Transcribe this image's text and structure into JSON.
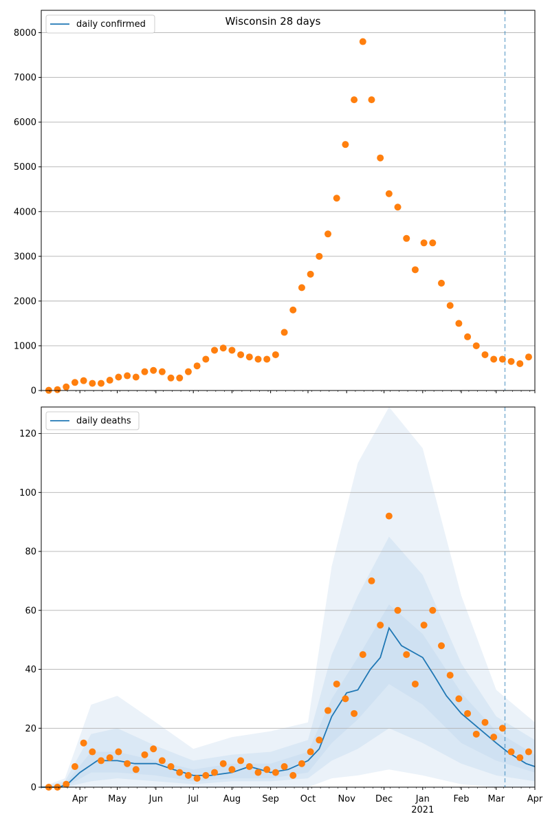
{
  "colors": {
    "line": "#1f77b4",
    "points": "#ff7f0e",
    "band": "#c6dbef",
    "grid": "#b0b0b0",
    "vline": "#1f77b4"
  },
  "chart_data": [
    {
      "type": "scatter",
      "title": "Wisconsin 28 days",
      "legend": [
        "daily confirmed"
      ],
      "legend_position": "top-left",
      "grid": "horizontal",
      "ylim": [
        0,
        8500
      ],
      "yticks": [
        0,
        1000,
        2000,
        3000,
        4000,
        5000,
        6000,
        7000,
        8000
      ],
      "x_start": "2020-03-01",
      "x_end": "2021-04-01",
      "forecast_start": "2021-03-08",
      "points_weekly": [
        [
          "2020-03-07",
          5
        ],
        [
          "2020-03-14",
          20
        ],
        [
          "2020-03-21",
          80
        ],
        [
          "2020-03-28",
          180
        ],
        [
          "2020-04-04",
          220
        ],
        [
          "2020-04-11",
          160
        ],
        [
          "2020-04-18",
          160
        ],
        [
          "2020-04-25",
          230
        ],
        [
          "2020-05-02",
          300
        ],
        [
          "2020-05-09",
          330
        ],
        [
          "2020-05-16",
          300
        ],
        [
          "2020-05-23",
          420
        ],
        [
          "2020-05-30",
          450
        ],
        [
          "2020-06-06",
          420
        ],
        [
          "2020-06-13",
          280
        ],
        [
          "2020-06-20",
          280
        ],
        [
          "2020-06-27",
          420
        ],
        [
          "2020-07-04",
          550
        ],
        [
          "2020-07-11",
          700
        ],
        [
          "2020-07-18",
          900
        ],
        [
          "2020-07-25",
          950
        ],
        [
          "2020-08-01",
          900
        ],
        [
          "2020-08-08",
          800
        ],
        [
          "2020-08-15",
          750
        ],
        [
          "2020-08-22",
          700
        ],
        [
          "2020-08-29",
          700
        ],
        [
          "2020-09-05",
          800
        ],
        [
          "2020-09-12",
          1300
        ],
        [
          "2020-09-19",
          1800
        ],
        [
          "2020-09-26",
          2300
        ],
        [
          "2020-10-03",
          2600
        ],
        [
          "2020-10-10",
          3000
        ],
        [
          "2020-10-17",
          3500
        ],
        [
          "2020-10-24",
          4300
        ],
        [
          "2020-10-31",
          5500
        ],
        [
          "2020-11-07",
          6500
        ],
        [
          "2020-11-14",
          7800
        ],
        [
          "2020-11-21",
          6500
        ],
        [
          "2020-11-28",
          5200
        ],
        [
          "2020-12-05",
          4400
        ],
        [
          "2020-12-12",
          4100
        ],
        [
          "2020-12-19",
          3400
        ],
        [
          "2020-12-26",
          2700
        ],
        [
          "2021-01-02",
          3300
        ],
        [
          "2021-01-09",
          3300
        ],
        [
          "2021-01-16",
          2400
        ],
        [
          "2021-01-23",
          1900
        ],
        [
          "2021-01-30",
          1500
        ],
        [
          "2021-02-06",
          1200
        ],
        [
          "2021-02-13",
          1000
        ],
        [
          "2021-02-20",
          800
        ],
        [
          "2021-02-27",
          700
        ],
        [
          "2021-03-06",
          700
        ],
        [
          "2021-03-13",
          650
        ],
        [
          "2021-03-20",
          600
        ],
        [
          "2021-03-27",
          750
        ]
      ]
    },
    {
      "type": "line",
      "legend": [
        "daily deaths"
      ],
      "legend_position": "top-left",
      "grid": "horizontal",
      "ylim": [
        0,
        129
      ],
      "yticks": [
        0,
        20,
        40,
        60,
        80,
        100,
        120
      ],
      "x_start": "2020-03-01",
      "x_end": "2021-04-01",
      "forecast_start": "2021-03-08",
      "xticks": [
        {
          "date": "2020-04-01",
          "label": "Apr"
        },
        {
          "date": "2020-05-01",
          "label": "May"
        },
        {
          "date": "2020-06-01",
          "label": "Jun"
        },
        {
          "date": "2020-07-01",
          "label": "Jul"
        },
        {
          "date": "2020-08-01",
          "label": "Aug"
        },
        {
          "date": "2020-09-01",
          "label": "Sep"
        },
        {
          "date": "2020-10-01",
          "label": "Oct"
        },
        {
          "date": "2020-11-01",
          "label": "Nov"
        },
        {
          "date": "2020-12-01",
          "label": "Dec"
        },
        {
          "date": "2021-01-01",
          "label": "Jan",
          "sublabel": "2021"
        },
        {
          "date": "2021-02-01",
          "label": "Feb"
        },
        {
          "date": "2021-03-01",
          "label": "Mar"
        },
        {
          "date": "2021-04-01",
          "label": "Apr"
        }
      ],
      "line": [
        [
          "2020-03-01",
          0
        ],
        [
          "2020-03-15",
          0
        ],
        [
          "2020-03-22",
          1
        ],
        [
          "2020-04-01",
          5
        ],
        [
          "2020-04-15",
          9
        ],
        [
          "2020-05-01",
          9
        ],
        [
          "2020-05-15",
          8
        ],
        [
          "2020-06-01",
          8
        ],
        [
          "2020-06-15",
          6
        ],
        [
          "2020-07-01",
          4
        ],
        [
          "2020-07-15",
          4
        ],
        [
          "2020-08-01",
          5
        ],
        [
          "2020-08-15",
          7
        ],
        [
          "2020-09-01",
          5
        ],
        [
          "2020-09-15",
          6
        ],
        [
          "2020-10-01",
          9
        ],
        [
          "2020-10-10",
          13
        ],
        [
          "2020-10-20",
          24
        ],
        [
          "2020-11-01",
          32
        ],
        [
          "2020-11-10",
          33
        ],
        [
          "2020-11-20",
          40
        ],
        [
          "2020-11-28",
          44
        ],
        [
          "2020-12-05",
          54
        ],
        [
          "2020-12-15",
          48
        ],
        [
          "2021-01-01",
          44
        ],
        [
          "2021-01-10",
          38
        ],
        [
          "2021-01-20",
          31
        ],
        [
          "2021-02-01",
          25
        ],
        [
          "2021-02-15",
          20
        ],
        [
          "2021-03-01",
          15
        ],
        [
          "2021-03-10",
          12
        ],
        [
          "2021-03-25",
          8
        ],
        [
          "2021-04-01",
          7
        ]
      ],
      "band_outer": [
        [
          "2020-03-01",
          0,
          0
        ],
        [
          "2020-03-20",
          0,
          3
        ],
        [
          "2020-04-10",
          0,
          28
        ],
        [
          "2020-05-01",
          0,
          31
        ],
        [
          "2020-06-01",
          0,
          22
        ],
        [
          "2020-07-01",
          0,
          13
        ],
        [
          "2020-08-01",
          0,
          17
        ],
        [
          "2020-09-01",
          0,
          19
        ],
        [
          "2020-10-01",
          0,
          22
        ],
        [
          "2020-10-20",
          3,
          75
        ],
        [
          "2020-11-10",
          4,
          110
        ],
        [
          "2020-12-05",
          6,
          130
        ],
        [
          "2021-01-01",
          4,
          115
        ],
        [
          "2021-02-01",
          1,
          65
        ],
        [
          "2021-03-01",
          0,
          33
        ],
        [
          "2021-04-01",
          0,
          22
        ]
      ],
      "band_mid": [
        [
          "2020-03-01",
          0,
          0
        ],
        [
          "2020-03-20",
          0,
          2
        ],
        [
          "2020-04-10",
          2,
          18
        ],
        [
          "2020-05-01",
          3,
          20
        ],
        [
          "2020-06-01",
          2,
          14
        ],
        [
          "2020-07-01",
          1,
          9
        ],
        [
          "2020-08-01",
          2,
          11
        ],
        [
          "2020-09-01",
          2,
          12
        ],
        [
          "2020-10-01",
          3,
          16
        ],
        [
          "2020-10-20",
          9,
          45
        ],
        [
          "2020-11-10",
          13,
          65
        ],
        [
          "2020-12-05",
          20,
          85
        ],
        [
          "2021-01-01",
          15,
          72
        ],
        [
          "2021-02-01",
          8,
          42
        ],
        [
          "2021-03-01",
          4,
          24
        ],
        [
          "2021-04-01",
          2,
          16
        ]
      ],
      "band_inner": [
        [
          "2020-03-01",
          0,
          0
        ],
        [
          "2020-03-20",
          0,
          1
        ],
        [
          "2020-04-10",
          5,
          12
        ],
        [
          "2020-05-01",
          5,
          12
        ],
        [
          "2020-06-01",
          4,
          9
        ],
        [
          "2020-07-01",
          2,
          6
        ],
        [
          "2020-08-01",
          3,
          8
        ],
        [
          "2020-09-01",
          3,
          8
        ],
        [
          "2020-10-01",
          5,
          12
        ],
        [
          "2020-10-20",
          15,
          30
        ],
        [
          "2020-11-10",
          23,
          44
        ],
        [
          "2020-12-05",
          35,
          62
        ],
        [
          "2021-01-01",
          28,
          52
        ],
        [
          "2021-02-01",
          15,
          32
        ],
        [
          "2021-03-01",
          9,
          19
        ],
        [
          "2021-04-01",
          5,
          11
        ]
      ],
      "points_weekly": [
        [
          "2020-03-07",
          0
        ],
        [
          "2020-03-14",
          0
        ],
        [
          "2020-03-21",
          1
        ],
        [
          "2020-03-28",
          7
        ],
        [
          "2020-04-04",
          15
        ],
        [
          "2020-04-11",
          12
        ],
        [
          "2020-04-18",
          9
        ],
        [
          "2020-04-25",
          10
        ],
        [
          "2020-05-02",
          12
        ],
        [
          "2020-05-09",
          8
        ],
        [
          "2020-05-16",
          6
        ],
        [
          "2020-05-23",
          11
        ],
        [
          "2020-05-30",
          13
        ],
        [
          "2020-06-06",
          9
        ],
        [
          "2020-06-13",
          7
        ],
        [
          "2020-06-20",
          5
        ],
        [
          "2020-06-27",
          4
        ],
        [
          "2020-07-04",
          3
        ],
        [
          "2020-07-11",
          4
        ],
        [
          "2020-07-18",
          5
        ],
        [
          "2020-07-25",
          8
        ],
        [
          "2020-08-01",
          6
        ],
        [
          "2020-08-08",
          9
        ],
        [
          "2020-08-15",
          7
        ],
        [
          "2020-08-22",
          5
        ],
        [
          "2020-08-29",
          6
        ],
        [
          "2020-09-05",
          5
        ],
        [
          "2020-09-12",
          7
        ],
        [
          "2020-09-19",
          4
        ],
        [
          "2020-09-26",
          8
        ],
        [
          "2020-10-03",
          12
        ],
        [
          "2020-10-10",
          16
        ],
        [
          "2020-10-17",
          26
        ],
        [
          "2020-10-24",
          35
        ],
        [
          "2020-10-31",
          30
        ],
        [
          "2020-11-07",
          25
        ],
        [
          "2020-11-14",
          45
        ],
        [
          "2020-11-21",
          70
        ],
        [
          "2020-11-28",
          55
        ],
        [
          "2020-12-05",
          92
        ],
        [
          "2020-12-12",
          60
        ],
        [
          "2020-12-19",
          45
        ],
        [
          "2020-12-26",
          35
        ],
        [
          "2021-01-02",
          55
        ],
        [
          "2021-01-09",
          60
        ],
        [
          "2021-01-16",
          48
        ],
        [
          "2021-01-23",
          38
        ],
        [
          "2021-01-30",
          30
        ],
        [
          "2021-02-06",
          25
        ],
        [
          "2021-02-13",
          18
        ],
        [
          "2021-02-20",
          22
        ],
        [
          "2021-02-27",
          17
        ],
        [
          "2021-03-06",
          20
        ],
        [
          "2021-03-13",
          12
        ],
        [
          "2021-03-20",
          10
        ],
        [
          "2021-03-27",
          12
        ]
      ]
    }
  ]
}
